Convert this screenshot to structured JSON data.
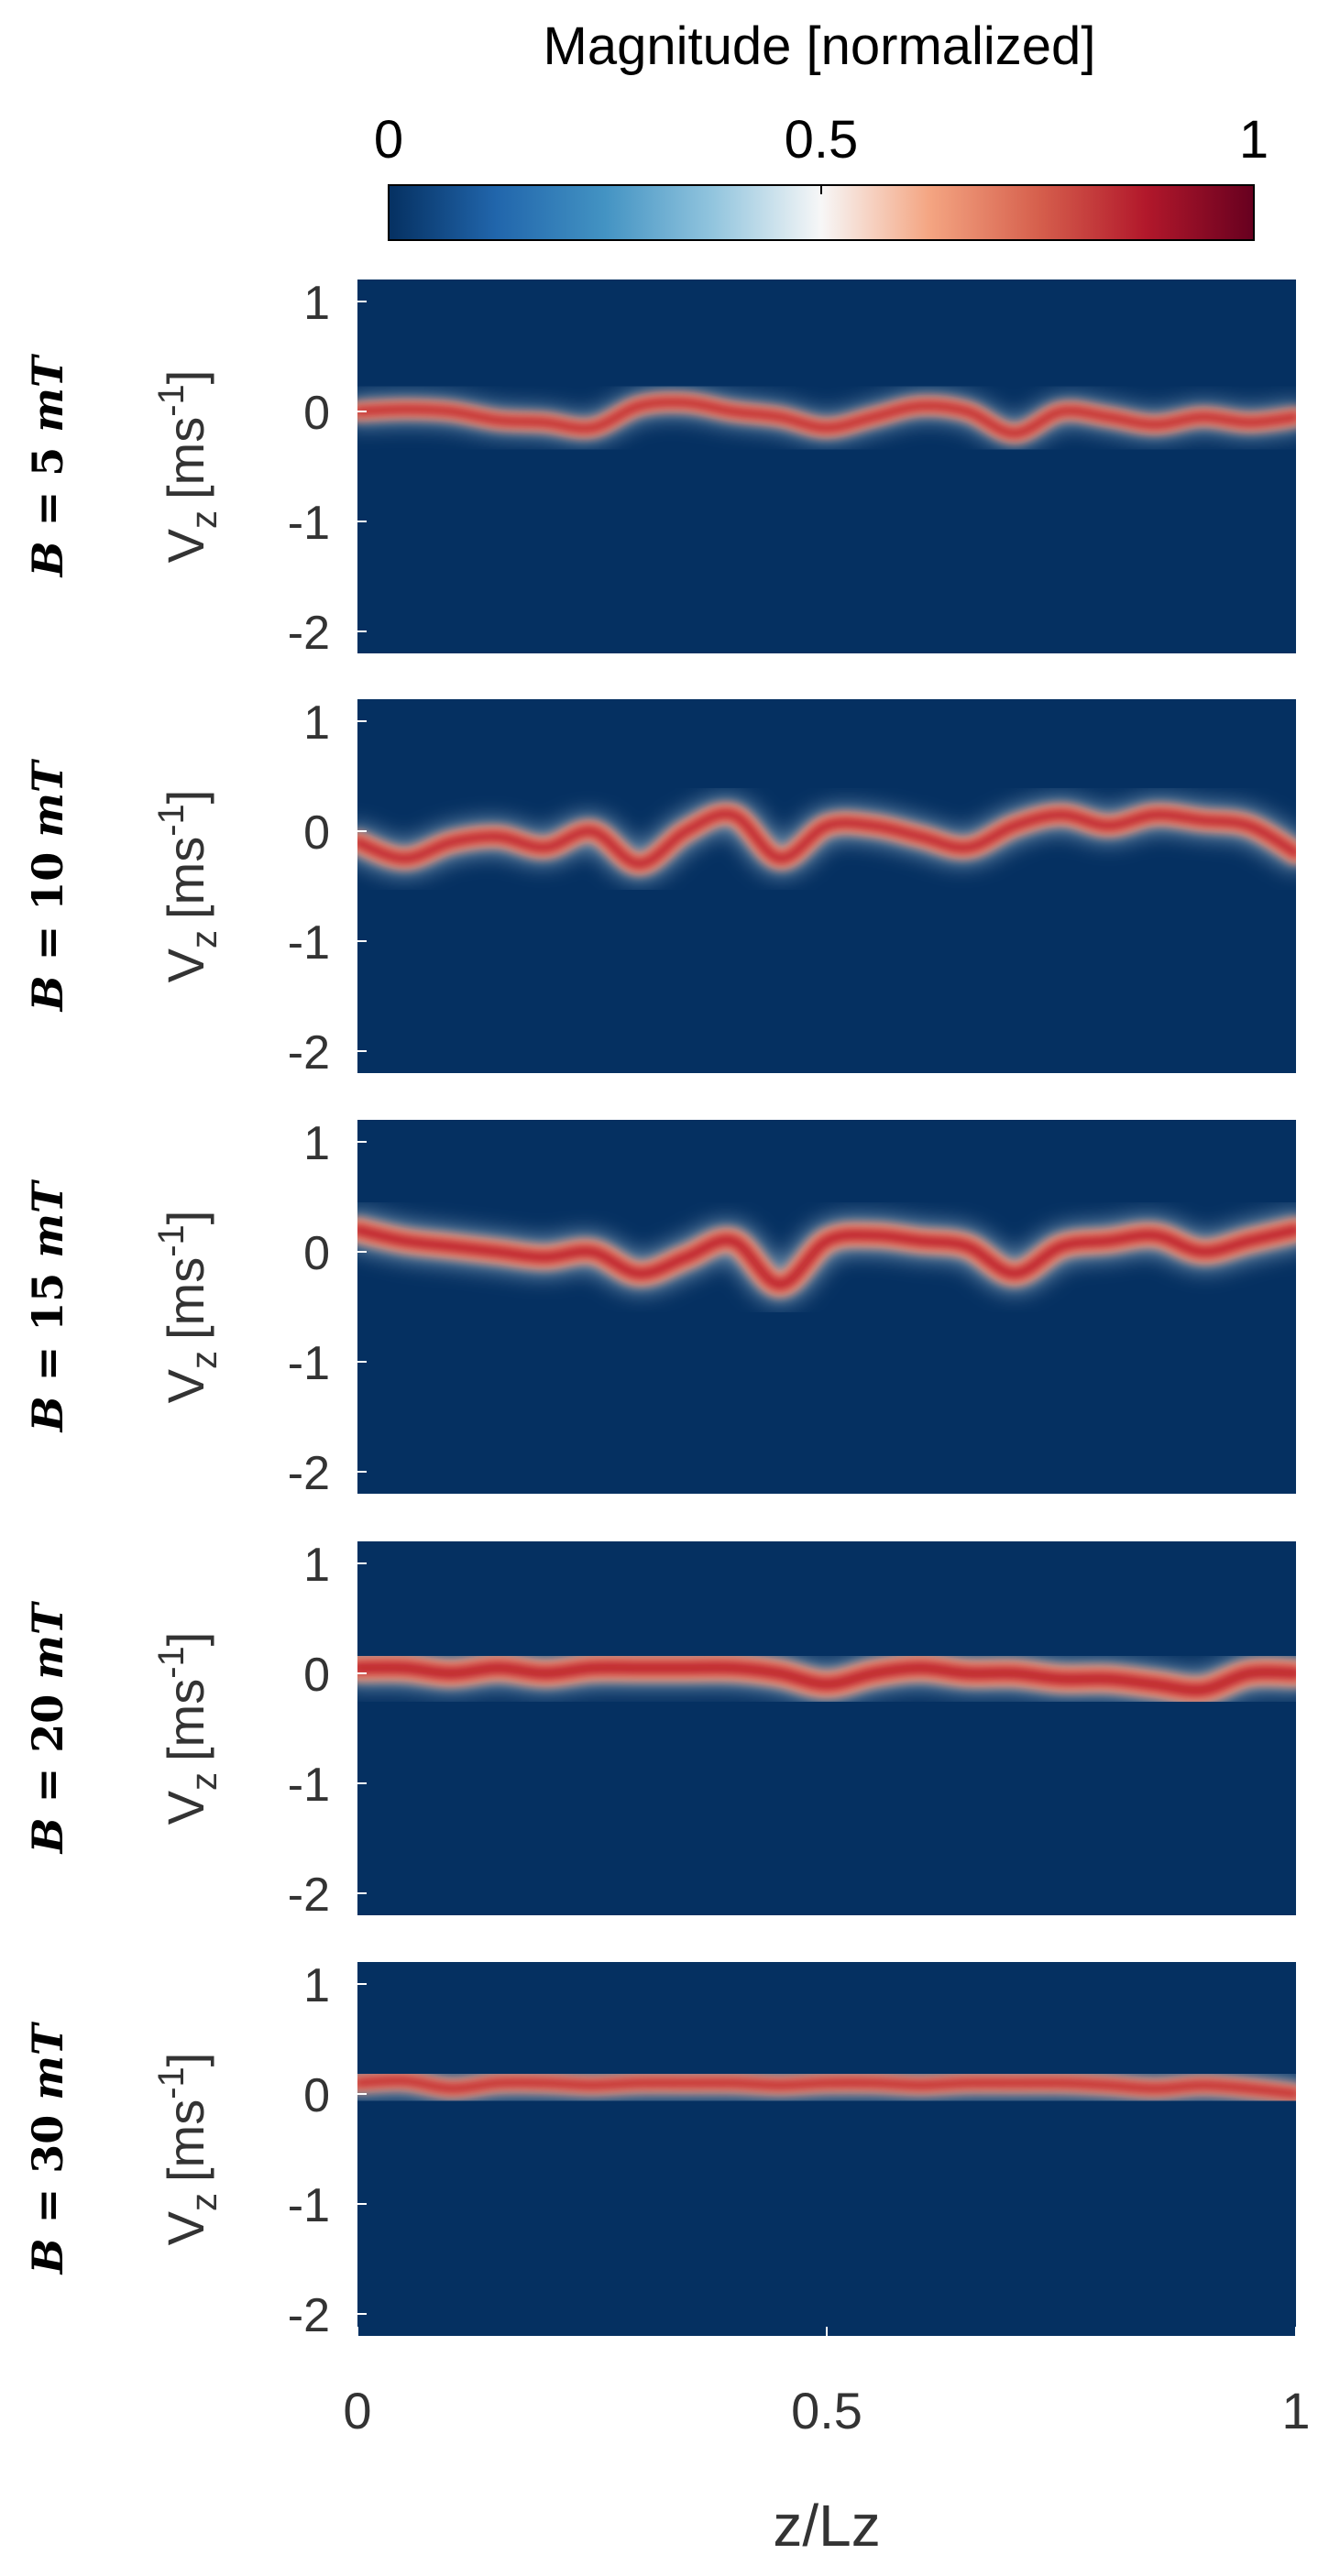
{
  "colorbar": {
    "title": "Magnitude [normalized]",
    "ticks": [
      0,
      0.5,
      1
    ],
    "tick_labels": [
      "0",
      "0.5",
      "1"
    ],
    "colormap": [
      "#053061",
      "#2166ac",
      "#4393c3",
      "#92c5de",
      "#f7f7f7",
      "#f4a582",
      "#d6604d",
      "#b2182b",
      "#67001f"
    ]
  },
  "chart_data": {
    "type": "heatmap",
    "xlabel": "z/Lz",
    "xlim": [
      0,
      1
    ],
    "x_ticks": [
      0,
      0.5,
      1
    ],
    "x_tick_labels": [
      "0",
      "0.5",
      "1"
    ],
    "ylabel": "V_z [ms^-1]",
    "ylabel_main": "V",
    "ylabel_sub": "z",
    "ylabel_unit": "[ms",
    "ylabel_sup": "-1",
    "ylabel_close": "]",
    "ylim": [
      -2.2,
      1.2
    ],
    "y_ticks": [
      1,
      0,
      -1,
      -2
    ],
    "y_tick_labels": [
      "1",
      "0",
      "-1",
      "-2"
    ],
    "background_color": "#053061",
    "panels": [
      {
        "label": "B = 5 mT",
        "label_field": "5",
        "label_unit": "mT",
        "band": {
          "x": [
            0,
            0.05,
            0.1,
            0.15,
            0.2,
            0.25,
            0.3,
            0.35,
            0.4,
            0.45,
            0.5,
            0.55,
            0.6,
            0.65,
            0.7,
            0.75,
            0.8,
            0.85,
            0.9,
            0.95,
            1
          ],
          "v": [
            0.0,
            0.02,
            0.0,
            -0.08,
            -0.1,
            -0.15,
            0.05,
            0.08,
            0.0,
            -0.05,
            -0.15,
            -0.05,
            0.05,
            0.0,
            -0.2,
            0.0,
            -0.05,
            -0.12,
            -0.05,
            -0.1,
            -0.05
          ]
        },
        "band_width": 0.14,
        "halo_width": 0.25
      },
      {
        "label": "B = 10 mT",
        "label_field": "10",
        "label_unit": "mT",
        "band": {
          "x": [
            0,
            0.05,
            0.1,
            0.15,
            0.2,
            0.25,
            0.3,
            0.35,
            0.4,
            0.45,
            0.5,
            0.55,
            0.6,
            0.65,
            0.7,
            0.75,
            0.8,
            0.85,
            0.9,
            0.95,
            1
          ],
          "v": [
            -0.1,
            -0.25,
            -0.1,
            -0.05,
            -0.15,
            0.0,
            -0.3,
            0.0,
            0.15,
            -0.25,
            0.05,
            0.05,
            -0.05,
            -0.15,
            0.05,
            0.15,
            0.05,
            0.15,
            0.1,
            0.05,
            -0.2
          ]
        },
        "band_width": 0.16,
        "halo_width": 0.3
      },
      {
        "label": "B = 15 mT",
        "label_field": "15",
        "label_unit": "mT",
        "band": {
          "x": [
            0,
            0.05,
            0.1,
            0.15,
            0.2,
            0.25,
            0.3,
            0.35,
            0.4,
            0.45,
            0.5,
            0.55,
            0.6,
            0.65,
            0.7,
            0.75,
            0.8,
            0.85,
            0.9,
            0.95,
            1
          ],
          "v": [
            0.2,
            0.1,
            0.05,
            0.0,
            -0.05,
            0.0,
            -0.2,
            -0.05,
            0.1,
            -0.3,
            0.1,
            0.15,
            0.1,
            0.05,
            -0.2,
            0.05,
            0.1,
            0.15,
            0.0,
            0.1,
            0.2
          ]
        },
        "band_width": 0.18,
        "halo_width": 0.33
      },
      {
        "label": "B = 20 mT",
        "label_field": "20",
        "label_unit": "mT",
        "band": {
          "x": [
            0,
            0.05,
            0.1,
            0.15,
            0.2,
            0.25,
            0.3,
            0.35,
            0.4,
            0.45,
            0.5,
            0.55,
            0.6,
            0.65,
            0.7,
            0.75,
            0.8,
            0.85,
            0.9,
            0.95,
            1
          ],
          "v": [
            0.05,
            0.05,
            0.0,
            0.05,
            0.0,
            0.05,
            0.05,
            0.05,
            0.05,
            0.0,
            -0.1,
            0.0,
            0.05,
            0.0,
            0.0,
            -0.05,
            -0.05,
            -0.1,
            -0.15,
            0.0,
            0.0
          ]
        },
        "band_width": 0.2,
        "halo_width": 0.34
      },
      {
        "label": "B = 30 mT",
        "label_field": "30",
        "label_unit": "mT",
        "band": {
          "x": [
            0,
            0.05,
            0.1,
            0.15,
            0.2,
            0.25,
            0.3,
            0.35,
            0.4,
            0.45,
            0.5,
            0.55,
            0.6,
            0.65,
            0.7,
            0.75,
            0.8,
            0.85,
            0.9,
            0.95,
            1
          ],
          "v": [
            0.1,
            0.12,
            0.05,
            0.1,
            0.1,
            0.08,
            0.1,
            0.1,
            0.1,
            0.08,
            0.1,
            0.1,
            0.08,
            0.1,
            0.1,
            0.1,
            0.08,
            0.05,
            0.08,
            0.05,
            0.0
          ]
        },
        "band_width": 0.14,
        "halo_width": 0.28
      }
    ]
  }
}
